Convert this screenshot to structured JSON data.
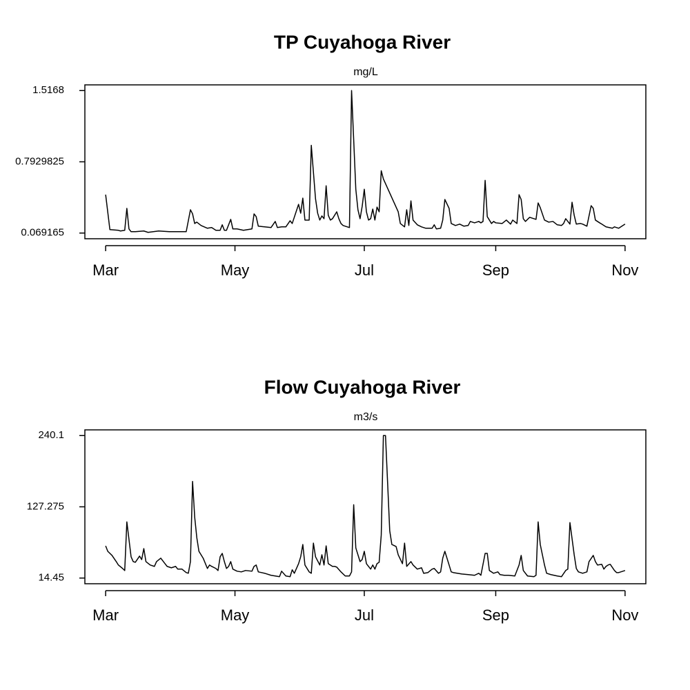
{
  "chart_data": [
    {
      "type": "line",
      "title": "TP Cuyahoga River",
      "subtitle": "mg/L",
      "color": "#000000",
      "x": [
        0,
        2,
        6,
        7,
        9,
        10,
        11,
        12,
        14,
        18,
        20,
        25,
        30,
        35,
        38,
        40,
        41,
        42,
        43,
        45,
        48,
        50,
        52,
        54,
        55,
        56,
        57,
        59,
        60,
        62,
        65,
        69,
        70,
        71,
        72,
        75,
        78,
        80,
        81,
        83,
        85,
        87,
        88,
        91,
        92,
        93,
        94,
        96,
        97,
        99,
        100,
        101,
        102,
        103,
        104,
        105,
        106,
        107,
        109,
        110,
        111,
        112,
        115,
        116,
        118,
        119,
        120,
        121,
        122,
        123,
        124,
        125,
        126,
        127,
        128,
        129,
        130,
        131,
        138,
        139,
        141,
        142,
        143,
        144,
        145,
        147,
        149,
        151,
        154,
        155,
        156,
        158,
        159,
        160,
        162,
        163,
        165,
        167,
        169,
        171,
        172,
        174,
        176,
        177,
        178,
        179,
        180,
        182,
        183,
        184,
        187,
        189,
        191,
        192,
        194,
        195,
        196,
        197,
        198,
        200,
        202,
        203,
        204,
        205,
        207,
        209,
        211,
        213,
        215,
        216,
        217,
        219,
        220,
        221,
        222,
        224,
        225,
        227,
        229,
        230,
        231,
        233,
        234,
        236,
        239,
        240,
        242,
        244,
        245
      ],
      "values": [
        0.459,
        0.104,
        0.097,
        0.09,
        0.097,
        0.32,
        0.111,
        0.083,
        0.083,
        0.09,
        0.076,
        0.09,
        0.083,
        0.083,
        0.083,
        0.306,
        0.264,
        0.166,
        0.18,
        0.146,
        0.118,
        0.125,
        0.097,
        0.097,
        0.153,
        0.097,
        0.097,
        0.208,
        0.111,
        0.111,
        0.097,
        0.111,
        0.264,
        0.236,
        0.139,
        0.132,
        0.125,
        0.187,
        0.125,
        0.132,
        0.132,
        0.194,
        0.166,
        0.361,
        0.271,
        0.424,
        0.201,
        0.201,
        0.96,
        0.417,
        0.271,
        0.201,
        0.243,
        0.215,
        0.549,
        0.25,
        0.201,
        0.215,
        0.285,
        0.215,
        0.166,
        0.146,
        0.125,
        1.5168,
        0.514,
        0.306,
        0.215,
        0.34,
        0.514,
        0.285,
        0.201,
        0.215,
        0.313,
        0.201,
        0.333,
        0.285,
        0.702,
        0.619,
        0.285,
        0.166,
        0.132,
        0.306,
        0.146,
        0.396,
        0.201,
        0.153,
        0.132,
        0.118,
        0.118,
        0.153,
        0.111,
        0.118,
        0.201,
        0.41,
        0.32,
        0.166,
        0.146,
        0.16,
        0.139,
        0.146,
        0.187,
        0.173,
        0.187,
        0.173,
        0.187,
        0.605,
        0.236,
        0.166,
        0.187,
        0.173,
        0.166,
        0.201,
        0.16,
        0.201,
        0.166,
        0.459,
        0.41,
        0.215,
        0.187,
        0.229,
        0.215,
        0.208,
        0.375,
        0.327,
        0.201,
        0.18,
        0.187,
        0.153,
        0.146,
        0.166,
        0.215,
        0.16,
        0.382,
        0.25,
        0.16,
        0.166,
        0.16,
        0.139,
        0.347,
        0.32,
        0.201,
        0.173,
        0.16,
        0.132,
        0.118,
        0.132,
        0.118,
        0.146,
        0.16
      ],
      "xlim": [
        -9.8,
        254.8
      ],
      "xticks": [
        {
          "value": 0,
          "label": "Mar"
        },
        {
          "value": 61,
          "label": "May"
        },
        {
          "value": 122,
          "label": "Jul"
        },
        {
          "value": 184,
          "label": "Sep"
        },
        {
          "value": 245,
          "label": "Nov"
        }
      ],
      "ylim": [
        0.0113,
        1.5747
      ],
      "yticks": [
        0.069165,
        0.7929825,
        1.5168
      ]
    },
    {
      "type": "line",
      "title": "Flow Cuyahoga River",
      "subtitle": "m3/s",
      "color": "#000000",
      "x": [
        0,
        1,
        3,
        5,
        6,
        8,
        9,
        10,
        12,
        13,
        14,
        16,
        17,
        18,
        19,
        21,
        23,
        24,
        26,
        28,
        29,
        31,
        33,
        34,
        36,
        38,
        39,
        40,
        41,
        42,
        43,
        44,
        46,
        48,
        49,
        50,
        52,
        53,
        54,
        55,
        56,
        57,
        58,
        59,
        60,
        62,
        64,
        66,
        69,
        70,
        71,
        72,
        75,
        78,
        82,
        83,
        85,
        87,
        88,
        89,
        91,
        92,
        93,
        94,
        96,
        97,
        98,
        99,
        101,
        102,
        103,
        104,
        105,
        107,
        108,
        109,
        111,
        113,
        115,
        116,
        117,
        118,
        120,
        121,
        122,
        123,
        125,
        126,
        127,
        128,
        129,
        130,
        131,
        132,
        133,
        134,
        135,
        137,
        138,
        140,
        141,
        142,
        144,
        145,
        147,
        149,
        150,
        152,
        154,
        155,
        157,
        158,
        159,
        160,
        162,
        163,
        164,
        168,
        171,
        174,
        176,
        177,
        179,
        180,
        181,
        183,
        185,
        186,
        188,
        190,
        193,
        195,
        196,
        197,
        199,
        202,
        203,
        204,
        205,
        207,
        208,
        210,
        213,
        215,
        217,
        218,
        219,
        221,
        222,
        223,
        225,
        227,
        228,
        230,
        231,
        232,
        234,
        235,
        236,
        237,
        238,
        240,
        241,
        242,
        244,
        245
      ],
      "values": [
        65.4,
        56.8,
        50.3,
        40.5,
        35.1,
        29.6,
        26.4,
        103.4,
        48.1,
        40.5,
        39.4,
        49.2,
        43.7,
        61.1,
        40.5,
        35.1,
        32.9,
        40.5,
        45.9,
        37.2,
        32.9,
        30.7,
        32.9,
        28.6,
        28.6,
        23.1,
        22.0,
        40.5,
        167.4,
        111.0,
        78.4,
        56.8,
        45.9,
        29.6,
        35.1,
        32.9,
        29.6,
        26.4,
        48.1,
        53.5,
        40.5,
        29.6,
        32.9,
        40.5,
        28.6,
        25.3,
        24.2,
        26.4,
        25.3,
        32.9,
        35.1,
        24.2,
        22.0,
        18.8,
        16.6,
        25.3,
        17.7,
        16.6,
        27.5,
        22.0,
        37.2,
        48.1,
        67.6,
        35.1,
        24.2,
        22.0,
        69.8,
        48.1,
        35.1,
        51.3,
        35.1,
        65.4,
        37.2,
        32.9,
        32.9,
        31.8,
        24.2,
        17.7,
        17.7,
        24.2,
        130.5,
        62.2,
        40.5,
        43.7,
        56.8,
        37.2,
        28.6,
        35.1,
        28.6,
        37.2,
        39.4,
        82.8,
        240.1,
        240.1,
        165.2,
        89.3,
        67.6,
        64.4,
        51.3,
        37.2,
        69.8,
        32.9,
        40.5,
        35.1,
        28.6,
        30.7,
        22.0,
        23.1,
        28.6,
        29.6,
        22.0,
        24.2,
        45.9,
        56.8,
        35.1,
        24.2,
        23.1,
        20.9,
        19.9,
        18.8,
        22.0,
        18.8,
        53.5,
        53.5,
        26.4,
        22.0,
        24.2,
        19.9,
        18.8,
        18.8,
        17.7,
        35.1,
        50.3,
        26.4,
        17.7,
        16.6,
        18.8,
        103.4,
        67.6,
        35.1,
        22.0,
        19.9,
        17.7,
        16.6,
        26.4,
        28.6,
        102.3,
        51.3,
        29.6,
        24.2,
        22.0,
        24.2,
        40.5,
        50.3,
        40.5,
        35.1,
        36.2,
        28.6,
        32.9,
        35.1,
        36.2,
        26.4,
        23.1,
        23.1,
        25.3,
        26.4
      ],
      "xlim": [
        -9.8,
        254.8
      ],
      "xticks": [
        {
          "value": 0,
          "label": "Mar"
        },
        {
          "value": 61,
          "label": "May"
        },
        {
          "value": 122,
          "label": "Jul"
        },
        {
          "value": 184,
          "label": "Sep"
        },
        {
          "value": 245,
          "label": "Nov"
        }
      ],
      "ylim": [
        5.424,
        249.126
      ],
      "yticks": [
        14.45,
        127.275,
        240.1
      ]
    }
  ]
}
